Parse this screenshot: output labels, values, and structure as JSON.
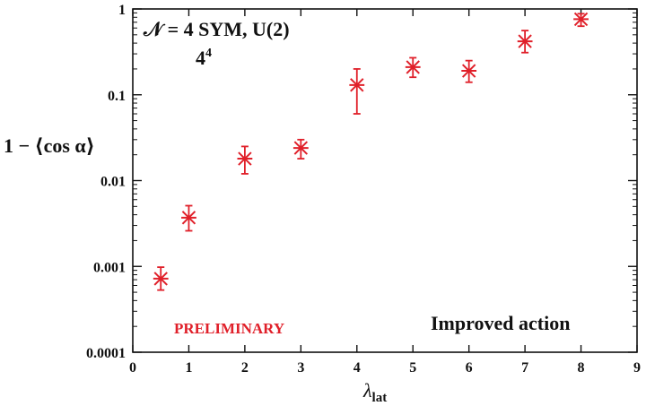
{
  "chart_data": {
    "type": "scatter",
    "title": "𝒩 = 4 SYM, U(2)",
    "subtitle_base": "4",
    "subtitle_sup": "4",
    "xlabel_main": "λ",
    "xlabel_sub": "lat",
    "ylabel": "1 − ⟨cos α⟩",
    "xlim": [
      0,
      9
    ],
    "ylim": [
      0.0001,
      1
    ],
    "y_scale": "log",
    "grid": false,
    "x_ticks": [
      0,
      1,
      2,
      3,
      4,
      5,
      6,
      7,
      8,
      9
    ],
    "x_tick_labels": [
      "0",
      "1",
      "2",
      "3",
      "4",
      "5",
      "6",
      "7",
      "8",
      "9"
    ],
    "y_ticks": [
      0.0001,
      0.001,
      0.01,
      0.1,
      1
    ],
    "y_tick_labels": [
      "0.0001",
      "0.001",
      "0.01",
      "0.1",
      "1"
    ],
    "series": [
      {
        "color": "#e0202a",
        "marker": "asterisk",
        "points": [
          {
            "x": 0.5,
            "y": 0.00072,
            "ylo": 0.00053,
            "yhi": 0.00098
          },
          {
            "x": 1,
            "y": 0.0037,
            "ylo": 0.0026,
            "yhi": 0.0051
          },
          {
            "x": 2,
            "y": 0.018,
            "ylo": 0.012,
            "yhi": 0.025
          },
          {
            "x": 3,
            "y": 0.024,
            "ylo": 0.018,
            "yhi": 0.03
          },
          {
            "x": 4,
            "y": 0.13,
            "ylo": 0.06,
            "yhi": 0.2
          },
          {
            "x": 5,
            "y": 0.21,
            "ylo": 0.16,
            "yhi": 0.27
          },
          {
            "x": 6,
            "y": 0.19,
            "ylo": 0.14,
            "yhi": 0.25
          },
          {
            "x": 7,
            "y": 0.42,
            "ylo": 0.31,
            "yhi": 0.56
          },
          {
            "x": 8,
            "y": 0.76,
            "ylo": 0.63,
            "yhi": 0.88
          }
        ]
      }
    ],
    "annotations": {
      "preliminary": "PRELIMINARY",
      "preliminary_color": "#e0202a",
      "action": "Improved action"
    }
  }
}
